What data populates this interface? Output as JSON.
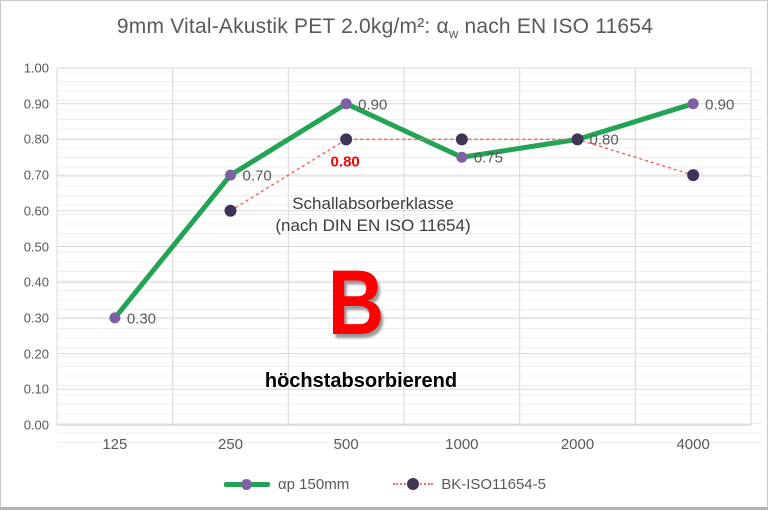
{
  "title": {
    "prefix": "9mm Vital-Akustik PET 2.0kg/m²: α",
    "sub": "w",
    "suffix": " nach EN ISO 11654"
  },
  "chart_data": {
    "type": "line",
    "title": "9mm Vital-Akustik PET 2.0kg/m²: αw nach EN ISO 11654",
    "categories": [
      "125",
      "250",
      "500",
      "1000",
      "2000",
      "4000"
    ],
    "xlabel": "",
    "ylabel": "",
    "ylim": [
      0.0,
      1.0
    ],
    "y_ticks": [
      "1.00",
      "0.90",
      "0.80",
      "0.70",
      "0.60",
      "0.50",
      "0.40",
      "0.30",
      "0.20",
      "0.10",
      "0.00"
    ],
    "grid": "horizontal major every 0.10 + vertical category boundaries",
    "legend_position": "bottom",
    "series": [
      {
        "name": "αp 150mm",
        "line_style": "solid",
        "line_color": "#23A455",
        "marker_color": "#7E61A5",
        "values": [
          0.3,
          0.7,
          0.9,
          0.75,
          0.8,
          0.9
        ],
        "point_labels": [
          {
            "index": 0,
            "text": "0.30",
            "placement": "right",
            "color": "#595959"
          },
          {
            "index": 1,
            "text": "0.70",
            "placement": "right",
            "color": "#595959"
          },
          {
            "index": 2,
            "text": "0.90",
            "placement": "right",
            "color": "#595959"
          },
          {
            "index": 3,
            "text": "0.75",
            "placement": "right",
            "color": "#595959"
          },
          {
            "index": 4,
            "text": "0.80",
            "placement": "right",
            "color": "#595959"
          },
          {
            "index": 5,
            "text": "0.90",
            "placement": "right",
            "color": "#595959"
          }
        ]
      },
      {
        "name": "BK-ISO11654-5",
        "line_style": "dashed",
        "line_color": "#FF5A5A",
        "marker_color": "#413358",
        "values": [
          null,
          0.6,
          0.8,
          0.8,
          0.8,
          0.7
        ],
        "point_labels": [
          {
            "index": 2,
            "text": "0.80",
            "placement": "below",
            "color": "#FE0000"
          }
        ]
      }
    ]
  },
  "annotations": {
    "class_title": "Schallabsorberklasse",
    "class_subtitle": "(nach DIN EN ISO 11654)",
    "class_letter": "B",
    "class_description": "höchstabsorbierend"
  },
  "colors": {
    "series1_line": "#23A455",
    "series1_marker": "#7E61A5",
    "series2_line": "#FF5A5A",
    "series2_marker": "#413358",
    "gridline": "#D9D9D9",
    "axis_line": "#BFBFBF",
    "label_gray": "#595959",
    "accent_red": "#FE0000"
  }
}
